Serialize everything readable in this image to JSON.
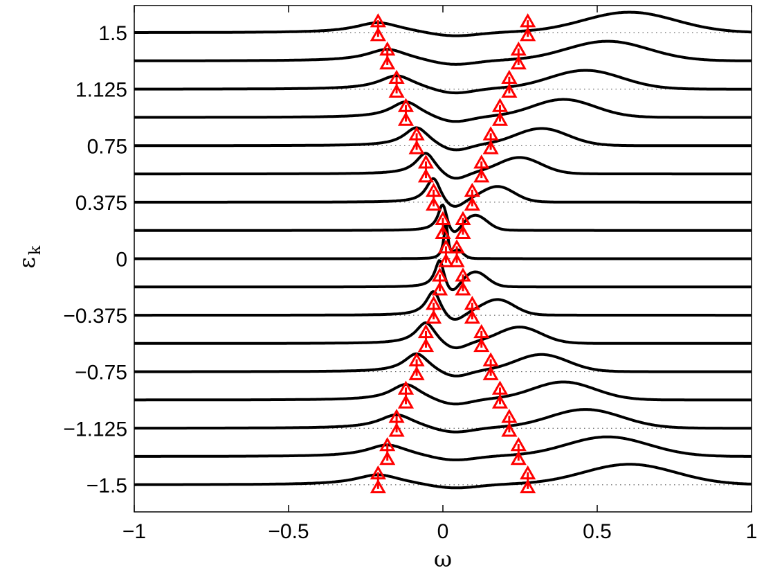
{
  "chart_data": {
    "type": "line",
    "title": "",
    "xlabel": "ω",
    "ylabel": "ε",
    "ylabel_subscript": "k",
    "xlim": [
      -1,
      1
    ],
    "ylim": [
      -1.68,
      1.68
    ],
    "x_ticks": [
      -1,
      -0.5,
      0,
      0.5,
      1
    ],
    "x_tick_labels": [
      "−1",
      "−0.5",
      "0",
      "0.5",
      "1"
    ],
    "y_ticks": [
      -1.5,
      -1.125,
      -0.75,
      -0.375,
      0,
      0.375,
      0.75,
      1.125,
      1.5
    ],
    "y_tick_labels": [
      "−1.5",
      "−1.125",
      "−0.75",
      "−0.375",
      "0",
      "0.375",
      "0.75",
      "1.125",
      "1.5"
    ],
    "grid": "dotted baselines at each ε_k",
    "legend": "none",
    "colors": {
      "curves": "#000000",
      "markers": "#ff0000"
    },
    "ek_values": [
      -1.5,
      -1.3125,
      -1.125,
      -0.9375,
      -0.75,
      -0.5625,
      -0.375,
      -0.1875,
      0,
      0.1875,
      0.375,
      0.5625,
      0.75,
      0.9375,
      1.125,
      1.3125,
      1.5
    ],
    "marker_positions_omega": {
      "left": [
        -0.21,
        -0.18,
        -0.15,
        -0.12,
        -0.085,
        -0.055,
        -0.03,
        -0.01,
        0.01,
        0.0,
        -0.03,
        -0.055,
        -0.085,
        -0.12,
        -0.15,
        -0.18,
        -0.21
      ],
      "right": [
        0.275,
        0.245,
        0.215,
        0.185,
        0.155,
        0.125,
        0.095,
        0.065,
        0.045,
        0.065,
        0.095,
        0.125,
        0.155,
        0.185,
        0.215,
        0.245,
        0.275
      ]
    },
    "marker_symbol": "triangle-up"
  }
}
